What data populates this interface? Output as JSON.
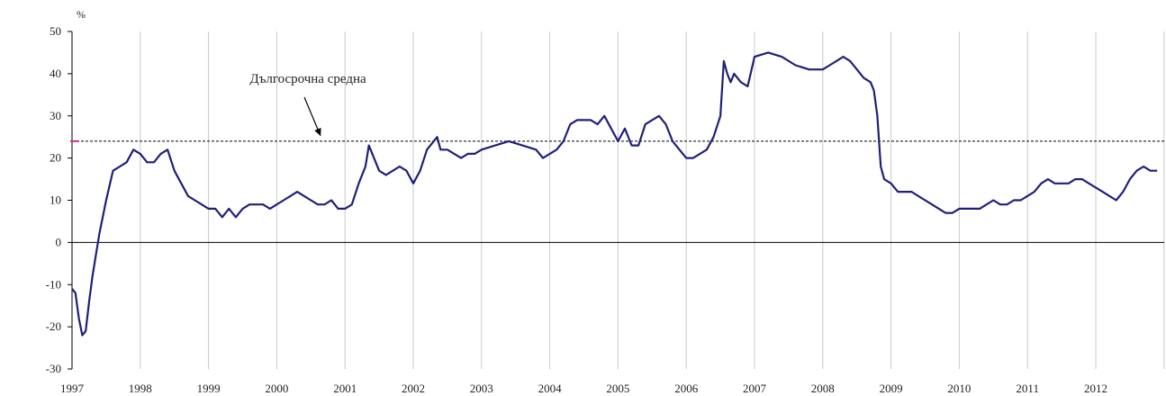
{
  "chart_data": {
    "type": "line",
    "title": "",
    "xlabel": "",
    "ylabel": "%",
    "xlim": [
      1997.0,
      2012.9
    ],
    "ylim": [
      -30,
      50
    ],
    "yticks": [
      50,
      40,
      30,
      20,
      10,
      0,
      -10,
      -20,
      -30
    ],
    "xticks": [
      "1997",
      "1998",
      "1999",
      "2000",
      "2001",
      "2002",
      "2003",
      "2004",
      "2005",
      "2006",
      "2007",
      "2008",
      "2009",
      "2010",
      "2011",
      "2012"
    ],
    "grid": "vertical",
    "colors": {
      "series": "#1f1f7a",
      "reference": "#000000",
      "marker": "#d0308a",
      "grid": "#c8c8c8"
    },
    "reference_line": {
      "value": 24,
      "label": "Дългосрочна средна",
      "style": "dashed"
    },
    "series": [
      {
        "x": [
          1997.0,
          1997.05,
          1997.1,
          1997.15,
          1997.2,
          1997.25,
          1997.3,
          1997.35,
          1997.4,
          1997.5,
          1997.6,
          1997.7,
          1997.8,
          1997.9,
          1998.0,
          1998.1,
          1998.2,
          1998.3,
          1998.4,
          1998.5,
          1998.6,
          1998.7,
          1998.8,
          1998.9,
          1999.0,
          1999.1,
          1999.2,
          1999.3,
          1999.4,
          1999.5,
          1999.6,
          1999.7,
          1999.8,
          1999.9,
          2000.0,
          2000.1,
          2000.2,
          2000.3,
          2000.4,
          2000.5,
          2000.6,
          2000.7,
          2000.8,
          2000.9,
          2001.0,
          2001.1,
          2001.2,
          2001.3,
          2001.35,
          2001.4,
          2001.5,
          2001.6,
          2001.7,
          2001.8,
          2001.9,
          2002.0,
          2002.1,
          2002.2,
          2002.3,
          2002.35,
          2002.4,
          2002.5,
          2002.6,
          2002.7,
          2002.8,
          2002.9,
          2003.0,
          2003.2,
          2003.4,
          2003.6,
          2003.8,
          2003.9,
          2004.0,
          2004.1,
          2004.2,
          2004.3,
          2004.4,
          2004.5,
          2004.6,
          2004.7,
          2004.8,
          2004.9,
          2005.0,
          2005.1,
          2005.2,
          2005.3,
          2005.4,
          2005.5,
          2005.6,
          2005.7,
          2005.8,
          2005.9,
          2006.0,
          2006.1,
          2006.2,
          2006.3,
          2006.4,
          2006.5,
          2006.55,
          2006.6,
          2006.65,
          2006.7,
          2006.8,
          2006.9,
          2007.0,
          2007.2,
          2007.4,
          2007.6,
          2007.8,
          2008.0,
          2008.1,
          2008.2,
          2008.3,
          2008.4,
          2008.5,
          2008.6,
          2008.7,
          2008.75,
          2008.8,
          2008.85,
          2008.9,
          2009.0,
          2009.1,
          2009.2,
          2009.3,
          2009.4,
          2009.5,
          2009.6,
          2009.7,
          2009.8,
          2009.9,
          2010.0,
          2010.1,
          2010.2,
          2010.3,
          2010.4,
          2010.5,
          2010.6,
          2010.7,
          2010.8,
          2010.9,
          2011.0,
          2011.1,
          2011.2,
          2011.3,
          2011.4,
          2011.5,
          2011.6,
          2011.7,
          2011.8,
          2011.9,
          2012.0,
          2012.1,
          2012.2,
          2012.3,
          2012.4,
          2012.5,
          2012.6,
          2012.7,
          2012.8,
          2012.9
        ],
        "values": [
          -11,
          -12,
          -18,
          -22,
          -21,
          -14,
          -8,
          -3,
          2,
          10,
          17,
          18,
          19,
          22,
          21,
          19,
          19,
          21,
          22,
          17,
          14,
          11,
          10,
          9,
          8,
          8,
          6,
          8,
          6,
          8,
          9,
          9,
          9,
          8,
          9,
          10,
          11,
          12,
          11,
          10,
          9,
          9,
          10,
          8,
          8,
          9,
          14,
          18,
          23,
          21,
          17,
          16,
          17,
          18,
          17,
          14,
          17,
          22,
          24,
          25,
          22,
          22,
          21,
          20,
          21,
          21,
          22,
          23,
          24,
          23,
          22,
          20,
          21,
          22,
          24,
          28,
          29,
          29,
          29,
          28,
          30,
          27,
          24,
          27,
          23,
          23,
          28,
          29,
          30,
          28,
          24,
          22,
          20,
          20,
          21,
          22,
          25,
          30,
          43,
          40,
          38,
          40,
          38,
          37,
          44,
          45,
          44,
          42,
          41,
          41,
          42,
          43,
          44,
          43,
          41,
          39,
          38,
          36,
          30,
          18,
          15,
          14,
          12,
          12,
          12,
          11,
          10,
          9,
          8,
          7,
          7,
          8,
          8,
          8,
          8,
          9,
          10,
          9,
          9,
          10,
          10,
          11,
          12,
          14,
          15,
          14,
          14,
          14,
          15,
          15,
          14,
          13,
          12,
          11,
          10,
          12,
          15,
          17,
          18,
          17,
          17
        ]
      }
    ]
  }
}
